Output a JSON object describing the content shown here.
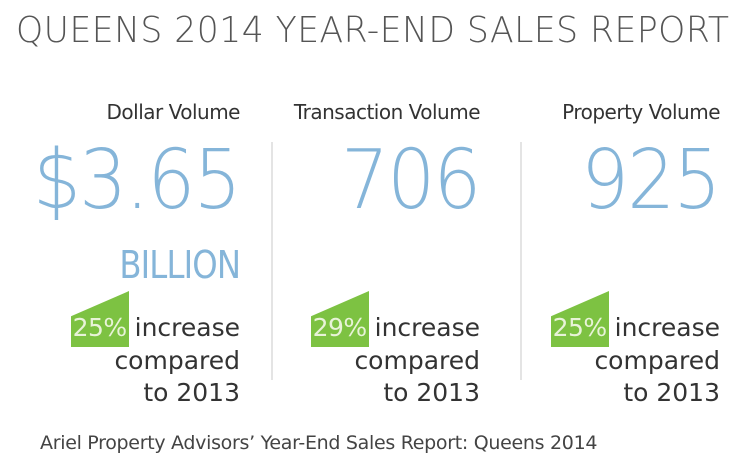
{
  "title": "QUEENS 2014 YEAR-END SALES REPORT",
  "stats": [
    {
      "heading": "Dollar Volume",
      "value": "$3.65",
      "unit": "BILLION",
      "change_pct": "25%",
      "change_word": "increase",
      "change_line2": "compared",
      "change_line3": "to 2013"
    },
    {
      "heading": "Transaction Volume",
      "value": "706",
      "unit": "",
      "change_pct": "29%",
      "change_word": "increase",
      "change_line2": "compared",
      "change_line3": "to 2013"
    },
    {
      "heading": "Property Volume",
      "value": "925",
      "unit": "",
      "change_pct": "25%",
      "change_word": "increase",
      "change_line2": "compared",
      "change_line3": "to 2013"
    }
  ],
  "caption": "Ariel Property Advisors’ Year-End Sales Report: Queens 2014",
  "colors": {
    "value_blue": "#85b5d9",
    "badge_green": "#7dc242",
    "text_dark": "#333333",
    "divider": "#e4e4e4"
  }
}
